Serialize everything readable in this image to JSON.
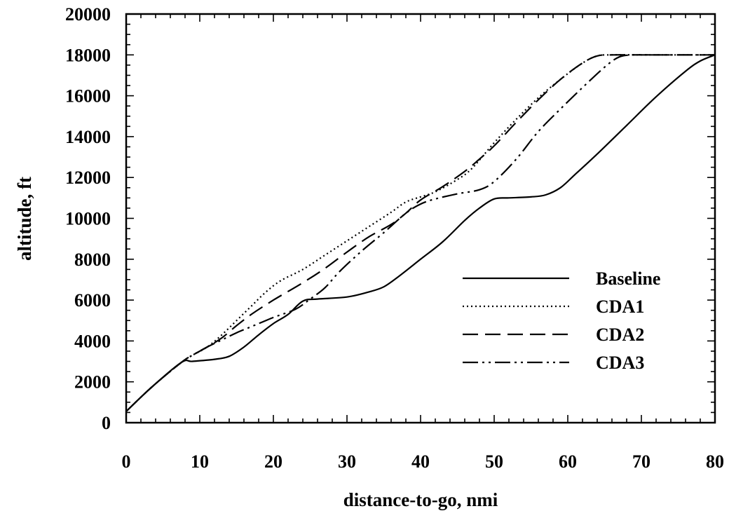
{
  "chart_data": {
    "type": "line",
    "title": "",
    "xlabel": "distance-to-go, nmi",
    "ylabel": "altitude, ft",
    "xlim": [
      0,
      80
    ],
    "ylim": [
      0,
      20000
    ],
    "x_ticks": [
      "0",
      "10",
      "20",
      "30",
      "40",
      "50",
      "60",
      "70",
      "80"
    ],
    "y_ticks": [
      "0",
      "2000",
      "4000",
      "6000",
      "8000",
      "10000",
      "12000",
      "14000",
      "16000",
      "18000",
      "20000"
    ],
    "grid": false,
    "legend_position": "bottom-right",
    "series": [
      {
        "name": "Baseline",
        "dash": "solid",
        "points": [
          [
            0,
            550
          ],
          [
            3.5,
            1750
          ],
          [
            7.5,
            2950
          ],
          [
            9,
            3000
          ],
          [
            12,
            3100
          ],
          [
            14,
            3250
          ],
          [
            16,
            3700
          ],
          [
            18,
            4300
          ],
          [
            20,
            4850
          ],
          [
            22,
            5300
          ],
          [
            24,
            5950
          ],
          [
            26,
            6050
          ],
          [
            30,
            6150
          ],
          [
            33,
            6400
          ],
          [
            35,
            6650
          ],
          [
            37,
            7150
          ],
          [
            40,
            8000
          ],
          [
            43,
            8850
          ],
          [
            46,
            9900
          ],
          [
            48,
            10500
          ],
          [
            50,
            10950
          ],
          [
            52,
            11000
          ],
          [
            55,
            11050
          ],
          [
            57,
            11150
          ],
          [
            59,
            11500
          ],
          [
            61,
            12150
          ],
          [
            64,
            13150
          ],
          [
            68,
            14550
          ],
          [
            72,
            15950
          ],
          [
            76,
            17200
          ],
          [
            78,
            17700
          ],
          [
            80,
            18000
          ]
        ]
      },
      {
        "name": "CDA1",
        "dash": "dotted",
        "points": [
          [
            0,
            550
          ],
          [
            3.5,
            1750
          ],
          [
            7.5,
            2950
          ],
          [
            9,
            3300
          ],
          [
            11,
            3700
          ],
          [
            13,
            4300
          ],
          [
            15,
            5000
          ],
          [
            17,
            5700
          ],
          [
            19,
            6400
          ],
          [
            21,
            6950
          ],
          [
            24,
            7500
          ],
          [
            27,
            8200
          ],
          [
            30,
            8900
          ],
          [
            33,
            9600
          ],
          [
            36,
            10300
          ],
          [
            38,
            10800
          ],
          [
            40,
            11050
          ],
          [
            42,
            11300
          ],
          [
            45,
            11900
          ],
          [
            47,
            12450
          ],
          [
            50,
            13700
          ],
          [
            53,
            14850
          ],
          [
            56,
            15900
          ],
          [
            59,
            16800
          ],
          [
            62,
            17600
          ],
          [
            64,
            17950
          ],
          [
            66,
            18000
          ],
          [
            70,
            18000
          ],
          [
            80,
            18000
          ]
        ]
      },
      {
        "name": "CDA2",
        "dash": "dashed",
        "points": [
          [
            0,
            550
          ],
          [
            3.5,
            1750
          ],
          [
            7.5,
            2950
          ],
          [
            9,
            3300
          ],
          [
            11,
            3700
          ],
          [
            13,
            4150
          ],
          [
            15,
            4750
          ],
          [
            17,
            5300
          ],
          [
            20,
            6000
          ],
          [
            24,
            6850
          ],
          [
            27,
            7550
          ],
          [
            30,
            8350
          ],
          [
            33,
            9100
          ],
          [
            36,
            9700
          ],
          [
            38,
            10250
          ],
          [
            40,
            10900
          ],
          [
            43,
            11550
          ],
          [
            46,
            12300
          ],
          [
            48,
            12900
          ],
          [
            50,
            13550
          ],
          [
            53,
            14700
          ],
          [
            56,
            15800
          ],
          [
            59,
            16800
          ],
          [
            62,
            17600
          ],
          [
            64,
            17950
          ],
          [
            66,
            18000
          ],
          [
            70,
            18000
          ],
          [
            80,
            18000
          ]
        ]
      },
      {
        "name": "CDA3",
        "dash": "dash-dot-dot",
        "points": [
          [
            0,
            550
          ],
          [
            3.5,
            1750
          ],
          [
            7.5,
            2950
          ],
          [
            9,
            3300
          ],
          [
            11,
            3700
          ],
          [
            13,
            4050
          ],
          [
            15,
            4400
          ],
          [
            17,
            4700
          ],
          [
            20,
            5150
          ],
          [
            23,
            5550
          ],
          [
            25,
            6050
          ],
          [
            27,
            6600
          ],
          [
            29,
            7400
          ],
          [
            32,
            8400
          ],
          [
            35,
            9300
          ],
          [
            38,
            10250
          ],
          [
            40,
            10700
          ],
          [
            42,
            10950
          ],
          [
            45,
            11200
          ],
          [
            48,
            11400
          ],
          [
            50,
            11800
          ],
          [
            53,
            12900
          ],
          [
            56,
            14250
          ],
          [
            59,
            15350
          ],
          [
            62,
            16400
          ],
          [
            65,
            17400
          ],
          [
            67,
            17900
          ],
          [
            69,
            18000
          ],
          [
            72,
            18000
          ],
          [
            80,
            18000
          ]
        ]
      }
    ]
  }
}
